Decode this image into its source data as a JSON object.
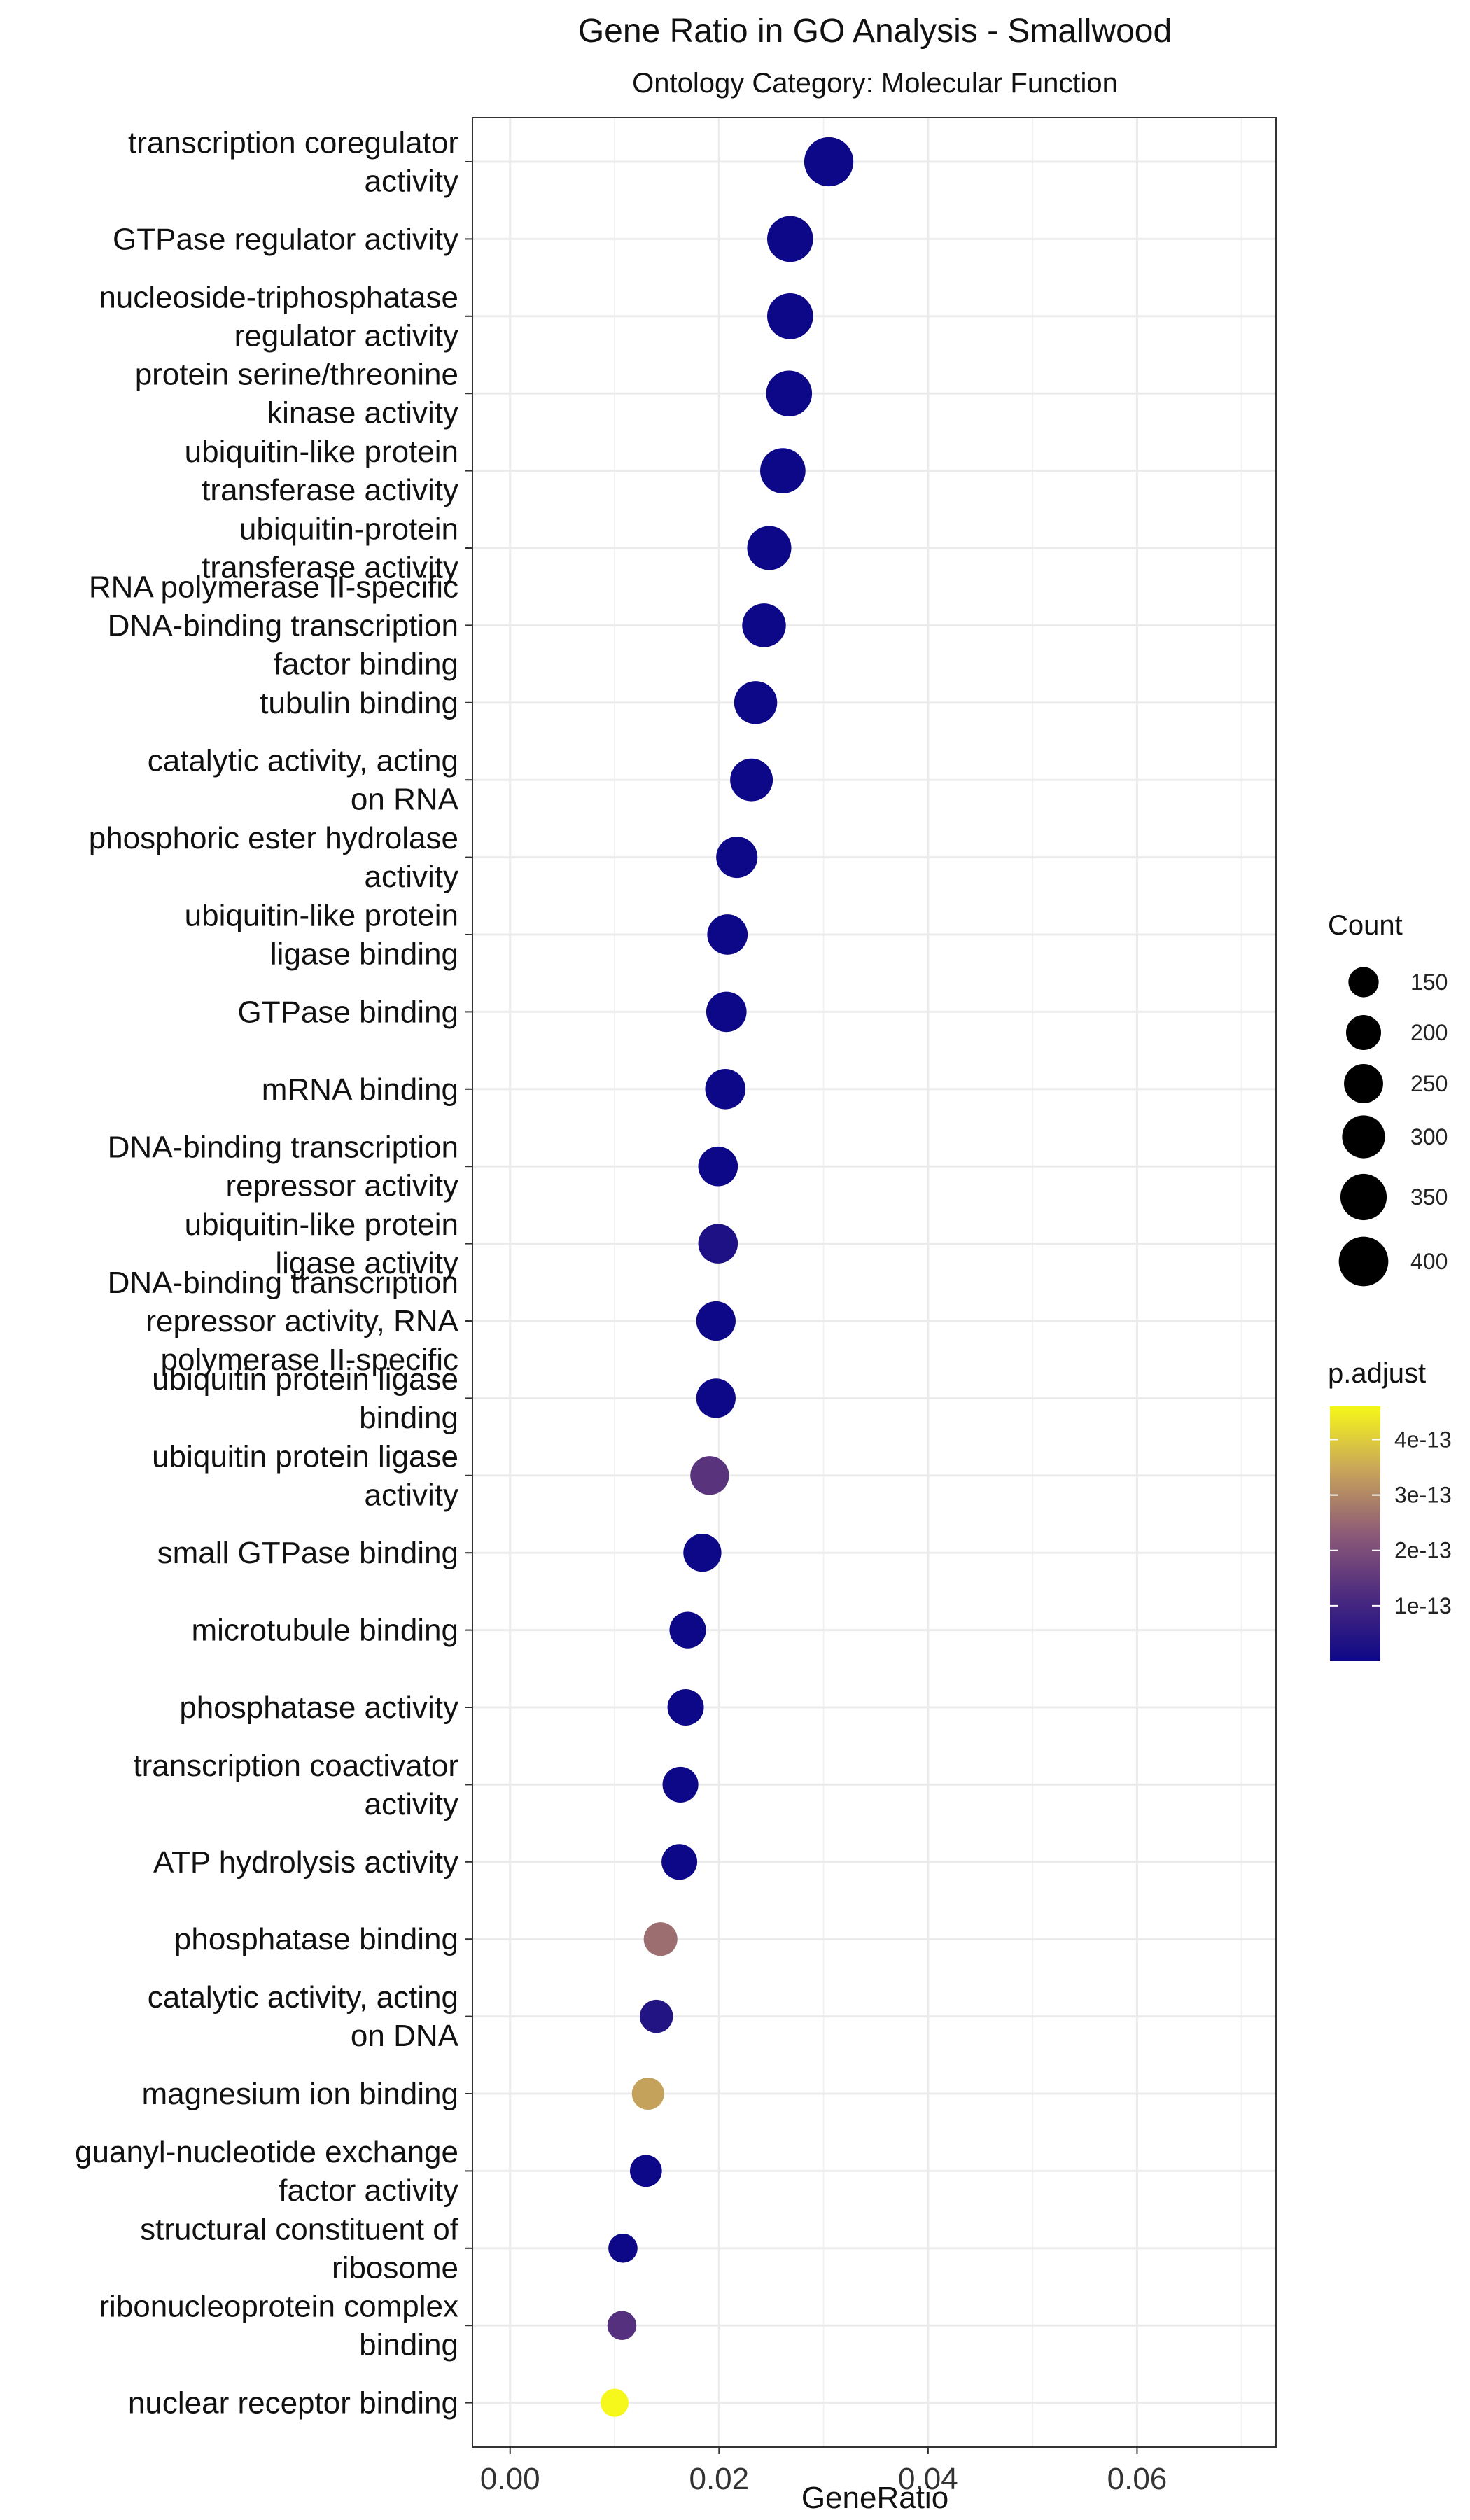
{
  "chart_data": {
    "type": "scatter",
    "title": "Gene Ratio in GO Analysis - Smallwood",
    "subtitle": "Ontology Category: Molecular Function",
    "xlabel": "GeneRatio",
    "ylabel": "",
    "xlim": [
      -0.0036,
      0.0733
    ],
    "x_ticks": [
      0.0,
      0.02,
      0.04,
      0.06
    ],
    "x_tick_labels": [
      "0.00",
      "0.02",
      "0.04",
      "0.06"
    ],
    "grid": true,
    "legend_position": "right",
    "size_legend": {
      "title": "Count",
      "values": [
        150,
        200,
        250,
        300,
        350,
        400
      ],
      "labels": [
        "150",
        "200",
        "250",
        "300",
        "350",
        "400"
      ]
    },
    "color_legend": {
      "title": "p.adjust",
      "min_color": "#0d0887",
      "max_color": "#f6f71a",
      "range": [
        0,
        4.6e-13
      ],
      "ticks": [
        1e-13,
        2e-13,
        3e-13,
        4e-13
      ],
      "tick_labels": [
        "1e-13",
        "2e-13",
        "3e-13",
        "4e-13"
      ]
    },
    "points": [
      {
        "term": [
          "transcription coregulator",
          "activity"
        ],
        "gene_ratio": 0.0305,
        "count": 395,
        "p_adjust": 1e-20
      },
      {
        "term": [
          "GTPase regulator activity"
        ],
        "gene_ratio": 0.0268,
        "count": 345,
        "p_adjust": 1e-20
      },
      {
        "term": [
          "nucleoside-triphosphatase",
          "regulator activity"
        ],
        "gene_ratio": 0.0268,
        "count": 345,
        "p_adjust": 1e-20
      },
      {
        "term": [
          "protein serine/threonine",
          "kinase activity"
        ],
        "gene_ratio": 0.0267,
        "count": 343,
        "p_adjust": 1e-20
      },
      {
        "term": [
          "ubiquitin-like protein",
          "transferase activity"
        ],
        "gene_ratio": 0.0261,
        "count": 335,
        "p_adjust": 1e-20
      },
      {
        "term": [
          "ubiquitin-protein",
          "transferase activity"
        ],
        "gene_ratio": 0.0248,
        "count": 318,
        "p_adjust": 1e-20
      },
      {
        "term": [
          "RNA polymerase II-specific",
          "DNA-binding transcription",
          "factor binding"
        ],
        "gene_ratio": 0.0243,
        "count": 312,
        "p_adjust": 1e-20
      },
      {
        "term": [
          "tubulin binding"
        ],
        "gene_ratio": 0.0235,
        "count": 302,
        "p_adjust": 1e-20
      },
      {
        "term": [
          "catalytic activity, acting",
          "on RNA"
        ],
        "gene_ratio": 0.0231,
        "count": 297,
        "p_adjust": 1e-20
      },
      {
        "term": [
          "phosphoric ester hydrolase",
          "activity"
        ],
        "gene_ratio": 0.0217,
        "count": 279,
        "p_adjust": 1e-20
      },
      {
        "term": [
          "ubiquitin-like protein",
          "ligase binding"
        ],
        "gene_ratio": 0.0208,
        "count": 267,
        "p_adjust": 1e-20
      },
      {
        "term": [
          "GTPase binding"
        ],
        "gene_ratio": 0.0207,
        "count": 266,
        "p_adjust": 1e-20
      },
      {
        "term": [
          "mRNA binding"
        ],
        "gene_ratio": 0.0206,
        "count": 265,
        "p_adjust": 1e-20
      },
      {
        "term": [
          "DNA-binding transcription",
          "repressor activity"
        ],
        "gene_ratio": 0.0199,
        "count": 256,
        "p_adjust": 1e-20
      },
      {
        "term": [
          "ubiquitin-like protein",
          "ligase activity"
        ],
        "gene_ratio": 0.0199,
        "count": 256,
        "p_adjust": 3e-14
      },
      {
        "term": [
          "DNA-binding transcription",
          "repressor activity, RNA",
          "polymerase II-specific"
        ],
        "gene_ratio": 0.0197,
        "count": 253,
        "p_adjust": 1e-20
      },
      {
        "term": [
          "ubiquitin protein ligase",
          "binding"
        ],
        "gene_ratio": 0.0197,
        "count": 253,
        "p_adjust": 1e-20
      },
      {
        "term": [
          "ubiquitin protein ligase",
          "activity"
        ],
        "gene_ratio": 0.0191,
        "count": 245,
        "p_adjust": 1.4e-13
      },
      {
        "term": [
          "small GTPase binding"
        ],
        "gene_ratio": 0.0184,
        "count": 236,
        "p_adjust": 1e-20
      },
      {
        "term": [
          "microtubule binding"
        ],
        "gene_ratio": 0.017,
        "count": 218,
        "p_adjust": 1e-20
      },
      {
        "term": [
          "phosphatase activity"
        ],
        "gene_ratio": 0.0168,
        "count": 216,
        "p_adjust": 1e-20
      },
      {
        "term": [
          "transcription coactivator",
          "activity"
        ],
        "gene_ratio": 0.0163,
        "count": 209,
        "p_adjust": 1e-20
      },
      {
        "term": [
          "ATP hydrolysis activity"
        ],
        "gene_ratio": 0.0162,
        "count": 208,
        "p_adjust": 1e-20
      },
      {
        "term": [
          "phosphatase binding"
        ],
        "gene_ratio": 0.0144,
        "count": 185,
        "p_adjust": 2.6e-13
      },
      {
        "term": [
          "catalytic activity, acting",
          "on DNA"
        ],
        "gene_ratio": 0.014,
        "count": 180,
        "p_adjust": 4e-14
      },
      {
        "term": [
          "magnesium ion binding"
        ],
        "gene_ratio": 0.0132,
        "count": 170,
        "p_adjust": 3.4e-13
      },
      {
        "term": [
          "guanyl-nucleotide exchange",
          "factor activity"
        ],
        "gene_ratio": 0.013,
        "count": 167,
        "p_adjust": 1e-20
      },
      {
        "term": [
          "structural constituent of",
          "ribosome"
        ],
        "gene_ratio": 0.0108,
        "count": 139,
        "p_adjust": 1e-20
      },
      {
        "term": [
          "ribonucleoprotein complex",
          "binding"
        ],
        "gene_ratio": 0.0107,
        "count": 138,
        "p_adjust": 1.3e-13
      },
      {
        "term": [
          "nuclear receptor binding"
        ],
        "gene_ratio": 0.01,
        "count": 128,
        "p_adjust": 4.6e-13
      }
    ]
  }
}
